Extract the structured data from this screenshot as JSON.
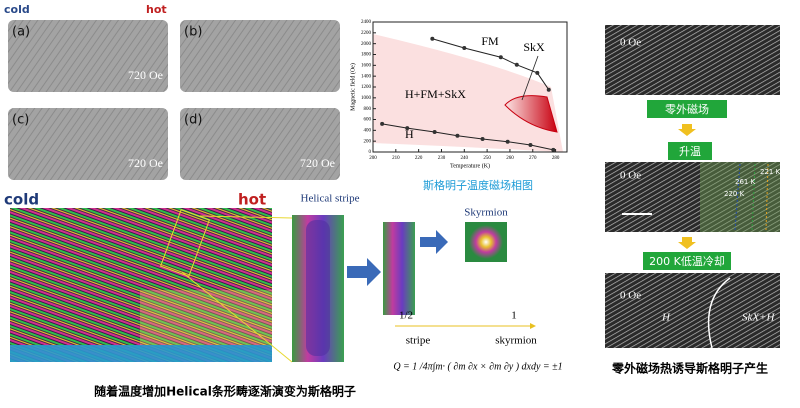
{
  "top_left": {
    "cold": "cold",
    "hot": "hot",
    "panels": [
      {
        "label": "(a)",
        "field": "720 Oe"
      },
      {
        "label": "(b)"
      },
      {
        "label": "(c)",
        "field": "720 Oe"
      },
      {
        "label": "(d)",
        "field": "720 Oe"
      }
    ]
  },
  "phase_diagram": {
    "type": "scatter",
    "x_label": "Temperature (K)",
    "y_label": "Magnetic field (Oe)",
    "xlim": [
      200,
      285
    ],
    "ylim": [
      0,
      2400
    ],
    "xticks": [
      200,
      210,
      220,
      230,
      240,
      250,
      260,
      270,
      280
    ],
    "yticks": [
      0,
      200,
      400,
      600,
      800,
      1000,
      1200,
      1400,
      1600,
      1800,
      2000,
      2200,
      2400
    ],
    "upper": {
      "x": [
        226,
        240,
        256,
        263,
        272,
        277
      ],
      "y": [
        2090,
        1920,
        1750,
        1610,
        1460,
        1150
      ]
    },
    "lower": {
      "x": [
        204,
        215,
        227,
        237,
        248,
        259,
        269,
        279
      ],
      "y": [
        520,
        440,
        370,
        300,
        240,
        190,
        130,
        40
      ]
    },
    "regions": [
      "FM",
      "SkX",
      "H+FM+SkX",
      "H"
    ],
    "caption": "斯格明子温度磁场相图"
  },
  "bottom": {
    "cold": "cold",
    "hot": "hot",
    "helical": "Helical stripe",
    "skyrmion": "Skyrmion",
    "q_start": "1/2",
    "q_end": "1",
    "stripe_label": "stripe",
    "skyrmion_label": "skyrmion",
    "formula": "Q = 1 /4π∫m· ( ∂m ∂x × ∂m ∂y ) dxdy = ±1",
    "caption": "随着温度增加Helical条形畴逐渐演变为斯格明子"
  },
  "right": {
    "field1": "0 Oe",
    "step1": "零外磁场",
    "step2": "升温",
    "field2": "0 Oe",
    "temps": [
      "221 K",
      "261 K",
      "220 K"
    ],
    "step3": "200 K低温冷却",
    "field3": "0 Oe",
    "h": "H",
    "skx_h": "SkX+H",
    "caption": "零外磁场热诱导斯格明子产生"
  }
}
